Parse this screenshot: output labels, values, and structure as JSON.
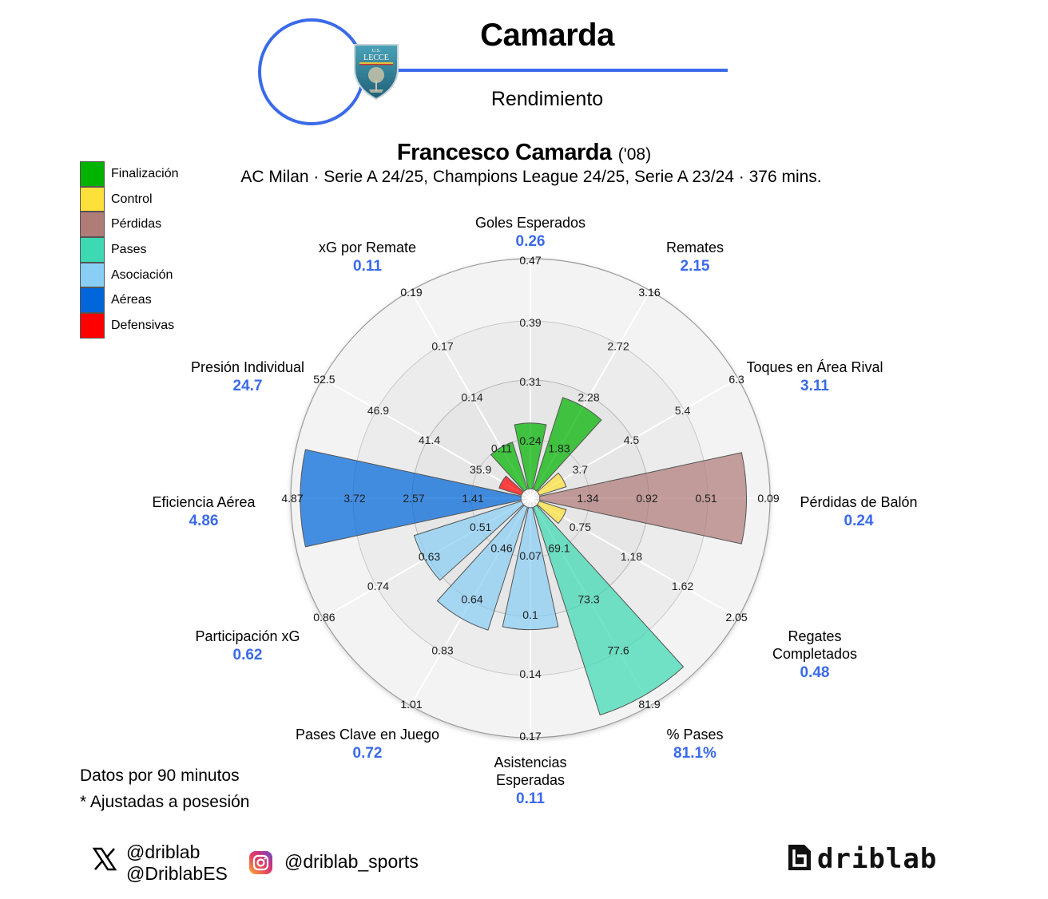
{
  "header": {
    "title": "Camarda",
    "subtitle": "Rendimiento",
    "club_badge": "lecce-crest",
    "accent_color": "#3a6ae8"
  },
  "player": {
    "name": "Francesco Camarda",
    "birth_year": "('08)",
    "info": "AC Milan · Serie A 24/25, Champions League 24/25, Serie A 23/24 · 376 mins."
  },
  "legend": [
    {
      "label": "Finalización",
      "color": "#00b300"
    },
    {
      "label": "Control",
      "color": "#fde03a"
    },
    {
      "label": "Pérdidas",
      "color": "#b07c78"
    },
    {
      "label": "Pases",
      "color": "#3dd9b3"
    },
    {
      "label": "Asociación",
      "color": "#89cff5"
    },
    {
      "label": "Aéreas",
      "color": "#0066d9"
    },
    {
      "label": "Defensivas",
      "color": "#ff0000"
    }
  ],
  "chart_data": {
    "type": "polar-bar",
    "title": "Francesco Camarda ('08)",
    "subtitle": "AC Milan · Serie A 24/25, Champions League 24/25, Serie A 23/24 · 376 mins.",
    "categories": [
      "Goles Esperados",
      "Remates",
      "Toques en Área Rival",
      "Pérdidas de Balón",
      "Regates Completados",
      "% Pases",
      "Asistencias Esperadas",
      "Pases Clave en Juego",
      "Participación xG",
      "Eficiencia Aérea",
      "Presión Individual",
      "xG por Remate"
    ],
    "values": [
      0.26,
      2.15,
      3.11,
      0.24,
      0.48,
      81.1,
      0.11,
      0.72,
      0.62,
      4.86,
      24.7,
      0.11
    ],
    "display_values": [
      "0.26",
      "2.15",
      "3.11",
      "0.24",
      "0.48",
      "81.1%",
      "0.11",
      "0.72",
      "0.62",
      "4.86",
      "24.7",
      "0.11"
    ],
    "groups": [
      "Finalización",
      "Finalización",
      "Control",
      "Pérdidas",
      "Control",
      "Pases",
      "Asociación",
      "Asociación",
      "Asociación",
      "Aéreas",
      "Defensivas",
      "Finalización"
    ],
    "ring_ticks": [
      [
        "0.24",
        "0.31",
        "0.39",
        "0.47"
      ],
      [
        "1.83",
        "2.28",
        "2.72",
        "3.16"
      ],
      [
        "3.7",
        "4.5",
        "5.4",
        "6.3"
      ],
      [
        "1.34",
        "0.92",
        "0.51",
        "0.09"
      ],
      [
        "0.75",
        "1.18",
        "1.62",
        "2.05"
      ],
      [
        "69.1",
        "73.3",
        "77.6",
        "81.9"
      ],
      [
        "0.07",
        "0.1",
        "0.14",
        "0.17"
      ],
      [
        "0.46",
        "0.64",
        "0.83",
        "1.01"
      ],
      [
        "0.51",
        "0.63",
        "0.74",
        "0.86"
      ],
      [
        "1.41",
        "2.57",
        "3.72",
        "4.87"
      ],
      [
        "35.9",
        "41.4",
        "46.9",
        "52.5"
      ],
      [
        "0.11",
        "0.14",
        "0.17",
        "0.19"
      ]
    ],
    "bar_radius_fraction": [
      0.32,
      0.45,
      0.16,
      0.92,
      0.16,
      0.97,
      0.56,
      0.59,
      0.52,
      0.98,
      0.14,
      0.25
    ],
    "notes": [
      "Datos por 90 minutos",
      "* Ajustadas a posesión"
    ]
  },
  "footer": {
    "note_1": "Datos por 90 minutos",
    "note_2": "* Ajustadas a posesión",
    "x_icon": "x-twitter-icon",
    "x_handle_1": "@driblab",
    "x_handle_2": "@DriblabES",
    "instagram_icon": "instagram-icon",
    "instagram_handle": "@driblab_sports",
    "brand": "driblab"
  }
}
